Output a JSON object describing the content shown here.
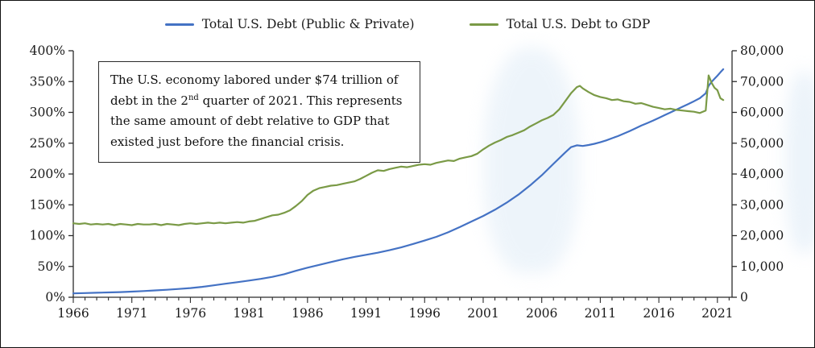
{
  "annotation": {
    "text_before_sup": "The U.S. economy labored under $74 trillion of debt in the 2",
    "superscript": "nd",
    "text_after_sup": " quarter of 2021. This represents the same amount of debt relative to GDP that existed just before the financial crisis."
  },
  "chart_data": {
    "type": "line",
    "title": "",
    "legend_position": "top-center",
    "grid": false,
    "x_axis": {
      "min": 1966,
      "max": 2022.25,
      "tick_years": [
        1966,
        1971,
        1976,
        1981,
        1986,
        1991,
        1996,
        2001,
        2006,
        2011,
        2016,
        2021
      ]
    },
    "left_axis": {
      "min": 0,
      "max": 400,
      "tick_step": 50,
      "format": "percent"
    },
    "right_axis": {
      "min": 0,
      "max": 80000,
      "tick_step": 10000,
      "format": "thousands"
    },
    "axis_color": "#2b2b2b",
    "series": [
      {
        "name": "Total U.S. Debt (Public & Private)",
        "axis": "right",
        "color": "#4472C4",
        "points": [
          [
            1966,
            1250
          ],
          [
            1967,
            1350
          ],
          [
            1968,
            1460
          ],
          [
            1969,
            1570
          ],
          [
            1970,
            1680
          ],
          [
            1971,
            1830
          ],
          [
            1972,
            2010
          ],
          [
            1973,
            2210
          ],
          [
            1974,
            2440
          ],
          [
            1975,
            2690
          ],
          [
            1976,
            2990
          ],
          [
            1977,
            3380
          ],
          [
            1978,
            3860
          ],
          [
            1979,
            4380
          ],
          [
            1980,
            4890
          ],
          [
            1981,
            5420
          ],
          [
            1982,
            5950
          ],
          [
            1983,
            6620
          ],
          [
            1984,
            7480
          ],
          [
            1985,
            8570
          ],
          [
            1986,
            9590
          ],
          [
            1987,
            10500
          ],
          [
            1988,
            11420
          ],
          [
            1989,
            12310
          ],
          [
            1990,
            13110
          ],
          [
            1991,
            13790
          ],
          [
            1992,
            14470
          ],
          [
            1993,
            15270
          ],
          [
            1994,
            16180
          ],
          [
            1995,
            17280
          ],
          [
            1996,
            18410
          ],
          [
            1997,
            19620
          ],
          [
            1998,
            21070
          ],
          [
            1999,
            22780
          ],
          [
            2000,
            24570
          ],
          [
            2001,
            26390
          ],
          [
            2002,
            28390
          ],
          [
            2003,
            30680
          ],
          [
            2004,
            33280
          ],
          [
            2005,
            36270
          ],
          [
            2006,
            39570
          ],
          [
            2007,
            43290
          ],
          [
            2008,
            46980
          ],
          [
            2008.5,
            48700
          ],
          [
            2009,
            49300
          ],
          [
            2009.5,
            49100
          ],
          [
            2010,
            49400
          ],
          [
            2010.5,
            49800
          ],
          [
            2011,
            50300
          ],
          [
            2011.5,
            50900
          ],
          [
            2012,
            51600
          ],
          [
            2012.5,
            52300
          ],
          [
            2013,
            53100
          ],
          [
            2013.5,
            53900
          ],
          [
            2014,
            54800
          ],
          [
            2014.5,
            55700
          ],
          [
            2015,
            56500
          ],
          [
            2015.5,
            57300
          ],
          [
            2016,
            58200
          ],
          [
            2016.5,
            59100
          ],
          [
            2017,
            60000
          ],
          [
            2017.5,
            60900
          ],
          [
            2018,
            61800
          ],
          [
            2018.5,
            62700
          ],
          [
            2019,
            63600
          ],
          [
            2019.5,
            64600
          ],
          [
            2020,
            66200
          ],
          [
            2020.25,
            68600
          ],
          [
            2020.5,
            69900
          ],
          [
            2020.75,
            70900
          ],
          [
            2021,
            71900
          ],
          [
            2021.25,
            73000
          ],
          [
            2021.5,
            74000
          ]
        ]
      },
      {
        "name": "Total U.S. Debt to GDP",
        "axis": "left",
        "color": "#7A9A46",
        "points": [
          [
            1966,
            120
          ],
          [
            1966.5,
            119
          ],
          [
            1967,
            120
          ],
          [
            1967.5,
            118
          ],
          [
            1968,
            119
          ],
          [
            1968.5,
            118
          ],
          [
            1969,
            119
          ],
          [
            1969.5,
            117
          ],
          [
            1970,
            119
          ],
          [
            1970.5,
            118
          ],
          [
            1971,
            117
          ],
          [
            1971.5,
            119
          ],
          [
            1972,
            118
          ],
          [
            1972.5,
            118
          ],
          [
            1973,
            119
          ],
          [
            1973.5,
            117
          ],
          [
            1974,
            119
          ],
          [
            1974.5,
            118
          ],
          [
            1975,
            117
          ],
          [
            1975.5,
            119
          ],
          [
            1976,
            120
          ],
          [
            1976.5,
            119
          ],
          [
            1977,
            120
          ],
          [
            1977.5,
            121
          ],
          [
            1978,
            120
          ],
          [
            1978.5,
            121
          ],
          [
            1979,
            120
          ],
          [
            1979.5,
            121
          ],
          [
            1980,
            122
          ],
          [
            1980.5,
            121
          ],
          [
            1981,
            123
          ],
          [
            1981.5,
            124
          ],
          [
            1982,
            127
          ],
          [
            1982.5,
            130
          ],
          [
            1983,
            133
          ],
          [
            1983.5,
            134
          ],
          [
            1984,
            137
          ],
          [
            1984.5,
            141
          ],
          [
            1985,
            148
          ],
          [
            1985.5,
            156
          ],
          [
            1986,
            166
          ],
          [
            1986.5,
            173
          ],
          [
            1987,
            177
          ],
          [
            1987.5,
            179
          ],
          [
            1988,
            181
          ],
          [
            1988.5,
            182
          ],
          [
            1989,
            184
          ],
          [
            1989.5,
            186
          ],
          [
            1990,
            188
          ],
          [
            1990.5,
            192
          ],
          [
            1991,
            197
          ],
          [
            1991.5,
            202
          ],
          [
            1992,
            206
          ],
          [
            1992.5,
            205
          ],
          [
            1993,
            208
          ],
          [
            1993.5,
            210
          ],
          [
            1994,
            212
          ],
          [
            1994.5,
            211
          ],
          [
            1995,
            213
          ],
          [
            1995.5,
            215
          ],
          [
            1996,
            216
          ],
          [
            1996.5,
            215
          ],
          [
            1997,
            218
          ],
          [
            1997.5,
            220
          ],
          [
            1998,
            222
          ],
          [
            1998.5,
            221
          ],
          [
            1999,
            225
          ],
          [
            1999.5,
            227
          ],
          [
            2000,
            229
          ],
          [
            2000.5,
            233
          ],
          [
            2001,
            240
          ],
          [
            2001.5,
            246
          ],
          [
            2002,
            251
          ],
          [
            2002.5,
            255
          ],
          [
            2003,
            260
          ],
          [
            2003.5,
            263
          ],
          [
            2004,
            267
          ],
          [
            2004.5,
            271
          ],
          [
            2005,
            277
          ],
          [
            2005.5,
            282
          ],
          [
            2006,
            287
          ],
          [
            2006.5,
            291
          ],
          [
            2007,
            296
          ],
          [
            2007.5,
            305
          ],
          [
            2008,
            318
          ],
          [
            2008.5,
            331
          ],
          [
            2009,
            341
          ],
          [
            2009.25,
            343
          ],
          [
            2009.5,
            339
          ],
          [
            2010,
            333
          ],
          [
            2010.5,
            328
          ],
          [
            2011,
            325
          ],
          [
            2011.5,
            323
          ],
          [
            2012,
            320
          ],
          [
            2012.5,
            321
          ],
          [
            2013,
            318
          ],
          [
            2013.5,
            317
          ],
          [
            2014,
            314
          ],
          [
            2014.5,
            315
          ],
          [
            2015,
            312
          ],
          [
            2015.5,
            309
          ],
          [
            2016,
            307
          ],
          [
            2016.5,
            305
          ],
          [
            2017,
            306
          ],
          [
            2017.5,
            304
          ],
          [
            2018,
            303
          ],
          [
            2018.5,
            302
          ],
          [
            2019,
            301
          ],
          [
            2019.5,
            299
          ],
          [
            2020,
            303
          ],
          [
            2020.25,
            360
          ],
          [
            2020.5,
            348
          ],
          [
            2020.75,
            340
          ],
          [
            2021,
            336
          ],
          [
            2021.25,
            323
          ],
          [
            2021.5,
            320
          ]
        ]
      }
    ]
  }
}
